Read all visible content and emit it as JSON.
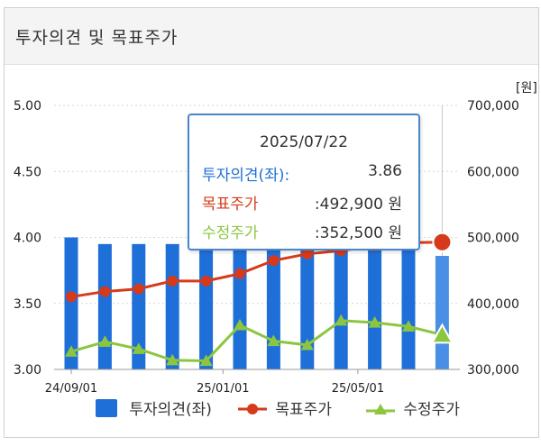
{
  "header": {
    "title": "투자의견 및 목표주가"
  },
  "chart_data": {
    "type": "bar+line",
    "y_left": {
      "ticks": [
        "5.00",
        "4.50",
        "4.00",
        "3.50",
        "3.00"
      ],
      "min": 3.0,
      "max": 5.0
    },
    "y_right": {
      "unit": "[원]",
      "ticks": [
        "700,000",
        "600,000",
        "500,000",
        "400,000",
        "300,000"
      ],
      "min": 300000,
      "max": 700000
    },
    "x_ticks": [
      {
        "label": "24/09/01",
        "index": 0
      },
      {
        "label": "25/01/01",
        "index": 4.5
      },
      {
        "label": "25/05/01",
        "index": 8.5
      }
    ],
    "series": [
      {
        "name": "투자의견(좌)",
        "kind": "bar",
        "color": "#1f6fd8",
        "values": [
          4.0,
          3.95,
          3.95,
          3.95,
          3.95,
          3.95,
          3.95,
          3.95,
          3.95,
          3.95,
          3.95,
          3.86
        ]
      },
      {
        "name": "목표주가",
        "kind": "line",
        "color": "#d63a1a",
        "values": [
          410000,
          418000,
          422000,
          434000,
          434000,
          445000,
          465000,
          475000,
          480000,
          487000,
          492000,
          492900
        ]
      },
      {
        "name": "수정주가",
        "kind": "line",
        "color": "#8cc63f",
        "values": [
          327000,
          342000,
          331000,
          314000,
          313000,
          367000,
          343000,
          337000,
          374000,
          371000,
          365000,
          352500
        ]
      }
    ],
    "highlight_index": 11,
    "tooltip": {
      "date": "2025/07/22",
      "rows": [
        {
          "label": "투자의견(좌)",
          "sep": ":",
          "value": "3.86",
          "color": "#1f6fd8"
        },
        {
          "label": "목표주가",
          "sep": "",
          "value": ":492,900 원",
          "color": "#d63a1a"
        },
        {
          "label": "수정주가",
          "sep": "",
          "value": ":352,500 원",
          "color": "#8cc63f"
        }
      ]
    }
  }
}
